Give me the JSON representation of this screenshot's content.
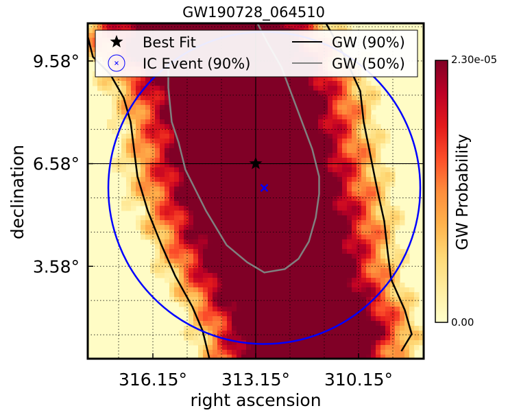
{
  "chart_data": {
    "type": "heatmap",
    "title": "GW190728_064510",
    "xlabel": "right ascension",
    "ylabel": "declination",
    "x_inverted": true,
    "xlim": [
      318.05,
      308.25
    ],
    "ylim": [
      0.88,
      10.68
    ],
    "x_ticks": [
      316.15,
      313.15,
      310.15
    ],
    "x_tick_labels": [
      "316.15°",
      "313.15°",
      "310.15°"
    ],
    "y_ticks": [
      9.58,
      6.58,
      3.58
    ],
    "y_tick_labels": [
      "9.58°",
      "6.58°",
      "3.58°"
    ],
    "minor_grid_step_deg": 1.0,
    "best_fit": {
      "ra": 313.15,
      "dec": 6.58
    },
    "ic_event": {
      "ra": 312.9,
      "dec": 5.87,
      "radius_deg": 4.55
    },
    "gw_90_left": [
      [
        318.05,
        10.3
      ],
      [
        317.9,
        9.7
      ],
      [
        317.4,
        9.2
      ],
      [
        317.0,
        8.5
      ],
      [
        316.8,
        7.8
      ],
      [
        316.7,
        7.0
      ],
      [
        316.6,
        6.2
      ],
      [
        316.3,
        5.2
      ],
      [
        315.9,
        4.2
      ],
      [
        315.5,
        3.3
      ],
      [
        315.0,
        2.4
      ],
      [
        314.7,
        1.7
      ],
      [
        314.5,
        0.88
      ]
    ],
    "gw_90_right": [
      [
        311.1,
        10.68
      ],
      [
        310.6,
        9.8
      ],
      [
        310.1,
        8.7
      ],
      [
        310.0,
        7.8
      ],
      [
        309.8,
        6.8
      ],
      [
        309.6,
        5.8
      ],
      [
        309.4,
        4.9
      ],
      [
        309.3,
        4.0
      ],
      [
        309.2,
        3.2
      ],
      [
        308.8,
        2.3
      ],
      [
        308.6,
        1.6
      ],
      [
        308.9,
        1.1
      ]
    ],
    "gw_50": [
      [
        313.1,
        10.68
      ],
      [
        312.8,
        10.1
      ],
      [
        312.4,
        9.4
      ],
      [
        312.1,
        8.6
      ],
      [
        311.8,
        7.8
      ],
      [
        311.5,
        7.0
      ],
      [
        311.3,
        6.2
      ],
      [
        311.3,
        5.7
      ],
      [
        311.4,
        5.0
      ],
      [
        311.6,
        4.3
      ],
      [
        311.9,
        3.8
      ],
      [
        312.3,
        3.5
      ],
      [
        312.9,
        3.4
      ],
      [
        313.4,
        3.7
      ],
      [
        314.0,
        4.2
      ],
      [
        314.3,
        4.7
      ],
      [
        314.6,
        5.2
      ],
      [
        314.9,
        5.8
      ],
      [
        315.2,
        6.4
      ],
      [
        315.4,
        7.2
      ],
      [
        315.6,
        7.8
      ],
      [
        315.7,
        8.8
      ],
      [
        315.7,
        9.5
      ]
    ],
    "legend": {
      "placement": "top",
      "entries": [
        {
          "label": "Best Fit",
          "marker": "star",
          "color": "#000000"
        },
        {
          "label": "IC Event (90%)",
          "marker": "circle-x",
          "color": "#0000ff"
        },
        {
          "label": "GW (90%)",
          "marker": "line",
          "color": "#000000"
        },
        {
          "label": "GW (50%)",
          "marker": "line",
          "color": "#808080"
        }
      ]
    },
    "colorbar": {
      "label": "GW Probability",
      "min_label": "0.00",
      "max_label": "2.30e-05",
      "colormap": [
        "#ffffcc",
        "#ffeda0",
        "#fed976",
        "#feb24c",
        "#fd8d3c",
        "#fc4e2a",
        "#e31a1c",
        "#bd0026",
        "#800026"
      ]
    },
    "colors": {
      "ic_circle": "#0000ff",
      "gw90": "#000000",
      "gw50": "#808080",
      "crosshair": "#000000"
    }
  }
}
